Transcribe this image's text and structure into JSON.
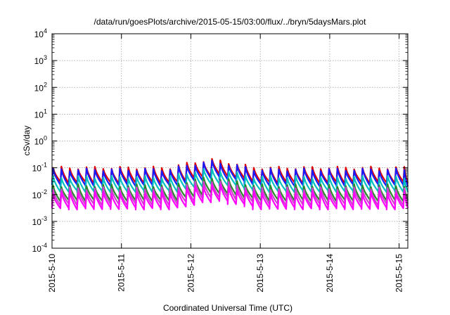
{
  "chart_data": {
    "type": "line",
    "title": "/data/run/goesPlots/archive/2015-05-15/03:00/flux/../bryn/5daysMars.plot",
    "xlabel": "Coordinated Universal Time (UTC)",
    "ylabel": "cSv/day",
    "yscale": "log",
    "ylim": [
      0.0001,
      10000
    ],
    "xlim": [
      "2015-05-10 00:00",
      "2015-05-15 03:00"
    ],
    "grid": true,
    "x_ticks": [
      "2015-5-10",
      "2015-5-11",
      "2015-5-12",
      "2015-5-13",
      "2015-5-14",
      "2015-5-15"
    ],
    "y_ticks": [
      {
        "base": "10",
        "exp": "-4",
        "value": 0.0001
      },
      {
        "base": "10",
        "exp": "-3",
        "value": 0.001
      },
      {
        "base": "10",
        "exp": "-2",
        "value": 0.01
      },
      {
        "base": "10",
        "exp": "-1",
        "value": 0.1
      },
      {
        "base": "10",
        "exp": "0",
        "value": 1
      },
      {
        "base": "10",
        "exp": "1",
        "value": 10
      },
      {
        "base": "10",
        "exp": "2",
        "value": 100
      },
      {
        "base": "10",
        "exp": "3",
        "value": 1000
      },
      {
        "base": "10",
        "exp": "4",
        "value": 10000
      }
    ],
    "pattern": {
      "cycles_per_day": 8.3,
      "peak_day_offset": 2.28,
      "peak_boost": 2.0
    },
    "series": [
      {
        "color": "#e00000",
        "peak": 0.1,
        "trough": 0.028
      },
      {
        "color": "#1a1aff",
        "peak": 0.085,
        "trough": 0.022
      },
      {
        "color": "#00c0c0",
        "peak": 0.045,
        "trough": 0.013
      },
      {
        "color": "#2a8a2a",
        "peak": 0.022,
        "trough": 0.006
      },
      {
        "color": "#d040d0",
        "peak": 0.017,
        "trough": 0.0042
      },
      {
        "color": "#ff00ff",
        "peak": 0.012,
        "trough": 0.003
      }
    ]
  }
}
